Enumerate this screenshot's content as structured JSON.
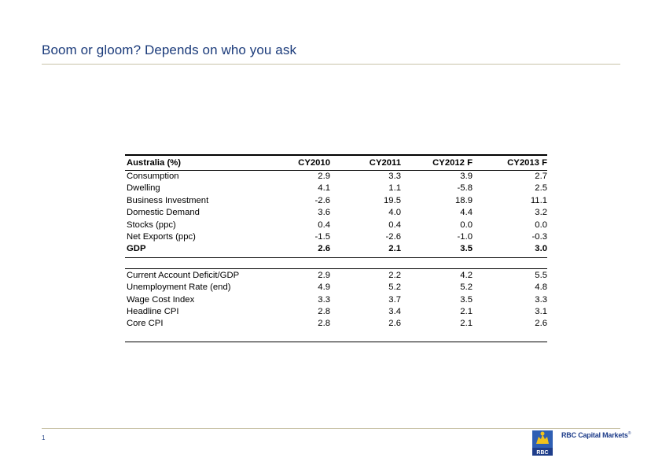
{
  "slide": {
    "title": "Boom or gloom? Depends on who you ask",
    "page_number": "1",
    "brand_text": "RBC Capital Markets",
    "brand_mark": "®",
    "logo_text": "RBC",
    "title_color": "#1a3a7a",
    "brand_color": "#1e3d8a"
  },
  "table": {
    "headers": [
      "Australia (%)",
      "CY2010",
      "CY2011",
      "CY2012 F",
      "CY2013 F"
    ],
    "section1": [
      {
        "label": "Consumption",
        "values": [
          "2.9",
          "3.3",
          "3.9",
          "2.7"
        ]
      },
      {
        "label": "Dwelling",
        "values": [
          "4.1",
          "1.1",
          "-5.8",
          "2.5"
        ]
      },
      {
        "label": "Business Investment",
        "values": [
          "-2.6",
          "19.5",
          "18.9",
          "11.1"
        ]
      },
      {
        "label": "Domestic Demand",
        "values": [
          "3.6",
          "4.0",
          "4.4",
          "3.2"
        ]
      },
      {
        "label": "Stocks (ppc)",
        "values": [
          "0.4",
          "0.4",
          "0.0",
          "0.0"
        ]
      },
      {
        "label": "Net Exports (ppc)",
        "values": [
          "-1.5",
          "-2.6",
          "-1.0",
          "-0.3"
        ]
      }
    ],
    "gdp": {
      "label": "GDP",
      "values": [
        "2.6",
        "2.1",
        "3.5",
        "3.0"
      ]
    },
    "section2": [
      {
        "label": "Current Account Deficit/GDP",
        "values": [
          "2.9",
          "2.2",
          "4.2",
          "5.5"
        ]
      },
      {
        "label": "Unemployment Rate (end)",
        "values": [
          "4.9",
          "5.2",
          "5.2",
          "4.8"
        ]
      },
      {
        "label": "Wage Cost Index",
        "values": [
          "3.3",
          "3.7",
          "3.5",
          "3.3"
        ]
      },
      {
        "label": "Headline CPI",
        "values": [
          "2.8",
          "3.4",
          "2.1",
          "3.1"
        ]
      },
      {
        "label": "Core CPI",
        "values": [
          "2.8",
          "2.6",
          "2.1",
          "2.6"
        ]
      }
    ]
  }
}
